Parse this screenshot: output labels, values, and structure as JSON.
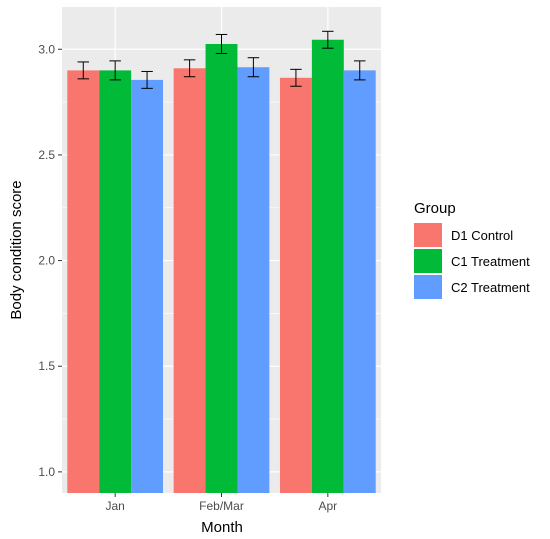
{
  "chart_data": {
    "type": "bar",
    "xlabel": "Month",
    "ylabel": "Body condition score",
    "categories": [
      "Jan",
      "Feb/Mar",
      "Apr"
    ],
    "ylim": [
      0.9,
      3.2
    ],
    "yticks": [
      1.0,
      1.5,
      2.0,
      2.5,
      3.0
    ],
    "ytick_labels": [
      "1.0",
      "1.5",
      "2.0",
      "2.5",
      "3.0"
    ],
    "grid": true,
    "legend": {
      "title": "Group",
      "position": "right"
    },
    "series": [
      {
        "name": "D1 Control",
        "color": "#F8766D",
        "values": [
          2.9,
          2.91,
          2.865
        ],
        "errors": [
          0.04,
          0.04,
          0.04
        ]
      },
      {
        "name": "C1 Treatment",
        "color": "#00BA38",
        "values": [
          2.9,
          3.025,
          3.045
        ],
        "errors": [
          0.045,
          0.045,
          0.04
        ]
      },
      {
        "name": "C2 Treatment",
        "color": "#619CFF",
        "values": [
          2.855,
          2.915,
          2.9
        ],
        "errors": [
          0.04,
          0.045,
          0.045
        ]
      }
    ]
  }
}
